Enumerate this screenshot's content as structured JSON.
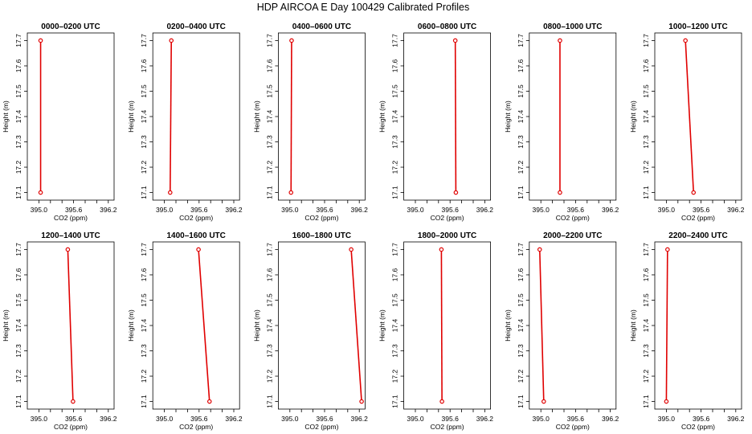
{
  "figure": {
    "title": "HDP AIRCOA E  Day 100429  Calibrated Profiles"
  },
  "chart_data": [
    {
      "type": "line",
      "title": "0000–0200 UTC",
      "xlabel": "CO2 (ppm)",
      "ylabel": "Height (m)",
      "xlim": [
        394.8,
        396.3
      ],
      "ylim": [
        17.07,
        17.73
      ],
      "x_ticks": [
        "395.0",
        "395.6",
        "396.2"
      ],
      "y_ticks": [
        "17.1",
        "17.2",
        "17.3",
        "17.4",
        "17.5",
        "17.6",
        "17.7"
      ],
      "series": [
        {
          "x": [
            395.03,
            395.03
          ],
          "y": [
            17.1,
            17.7
          ]
        }
      ]
    },
    {
      "type": "line",
      "title": "0200–0400 UTC",
      "xlabel": "CO2 (ppm)",
      "ylabel": "Height (m)",
      "xlim": [
        394.8,
        396.3
      ],
      "ylim": [
        17.07,
        17.73
      ],
      "x_ticks": [
        "395.0",
        "395.6",
        "396.2"
      ],
      "y_ticks": [
        "17.1",
        "17.2",
        "17.3",
        "17.4",
        "17.5",
        "17.6",
        "17.7"
      ],
      "series": [
        {
          "x": [
            395.1,
            395.12
          ],
          "y": [
            17.1,
            17.7
          ]
        }
      ]
    },
    {
      "type": "line",
      "title": "0400–0600 UTC",
      "xlabel": "CO2 (ppm)",
      "ylabel": "Height (m)",
      "xlim": [
        394.8,
        396.3
      ],
      "ylim": [
        17.07,
        17.73
      ],
      "x_ticks": [
        "395.0",
        "395.6",
        "396.2"
      ],
      "y_ticks": [
        "17.1",
        "17.2",
        "17.3",
        "17.4",
        "17.5",
        "17.6",
        "17.7"
      ],
      "series": [
        {
          "x": [
            395.02,
            395.03
          ],
          "y": [
            17.1,
            17.7
          ]
        }
      ]
    },
    {
      "type": "line",
      "title": "0600–0800 UTC",
      "xlabel": "CO2 (ppm)",
      "ylabel": "Height (m)",
      "xlim": [
        394.8,
        396.3
      ],
      "ylim": [
        17.07,
        17.73
      ],
      "x_ticks": [
        "395.0",
        "395.6",
        "396.2"
      ],
      "y_ticks": [
        "17.1",
        "17.2",
        "17.3",
        "17.4",
        "17.5",
        "17.6",
        "17.7"
      ],
      "series": [
        {
          "x": [
            395.7,
            395.69
          ],
          "y": [
            17.1,
            17.7
          ]
        }
      ]
    },
    {
      "type": "line",
      "title": "0800–1000 UTC",
      "xlabel": "CO2 (ppm)",
      "ylabel": "Height (m)",
      "xlim": [
        394.8,
        396.3
      ],
      "ylim": [
        17.07,
        17.73
      ],
      "x_ticks": [
        "395.0",
        "395.6",
        "396.2"
      ],
      "y_ticks": [
        "17.1",
        "17.2",
        "17.3",
        "17.4",
        "17.5",
        "17.6",
        "17.7"
      ],
      "series": [
        {
          "x": [
            395.33,
            395.33
          ],
          "y": [
            17.1,
            17.7
          ]
        }
      ]
    },
    {
      "type": "line",
      "title": "1000–1200 UTC",
      "xlabel": "CO2 (ppm)",
      "ylabel": "Height (m)",
      "xlim": [
        394.8,
        396.3
      ],
      "ylim": [
        17.07,
        17.73
      ],
      "x_ticks": [
        "395.0",
        "395.6",
        "396.2"
      ],
      "y_ticks": [
        "17.1",
        "17.2",
        "17.3",
        "17.4",
        "17.5",
        "17.6",
        "17.7"
      ],
      "series": [
        {
          "x": [
            395.47,
            395.33
          ],
          "y": [
            17.1,
            17.7
          ]
        }
      ]
    },
    {
      "type": "line",
      "title": "1200–1400 UTC",
      "xlabel": "CO2 (ppm)",
      "ylabel": "Height (m)",
      "xlim": [
        394.8,
        396.3
      ],
      "ylim": [
        17.07,
        17.73
      ],
      "x_ticks": [
        "395.0",
        "395.6",
        "396.2"
      ],
      "y_ticks": [
        "17.1",
        "17.2",
        "17.3",
        "17.4",
        "17.5",
        "17.6",
        "17.7"
      ],
      "series": [
        {
          "x": [
            395.59,
            395.5
          ],
          "y": [
            17.1,
            17.7
          ]
        }
      ]
    },
    {
      "type": "line",
      "title": "1400–1600 UTC",
      "xlabel": "CO2 (ppm)",
      "ylabel": "Height (m)",
      "xlim": [
        394.8,
        396.3
      ],
      "ylim": [
        17.07,
        17.73
      ],
      "x_ticks": [
        "395.0",
        "395.6",
        "396.2"
      ],
      "y_ticks": [
        "17.1",
        "17.2",
        "17.3",
        "17.4",
        "17.5",
        "17.6",
        "17.7"
      ],
      "series": [
        {
          "x": [
            395.78,
            395.59
          ],
          "y": [
            17.1,
            17.7
          ]
        }
      ]
    },
    {
      "type": "line",
      "title": "1600–1800 UTC",
      "xlabel": "CO2 (ppm)",
      "ylabel": "Height (m)",
      "xlim": [
        394.8,
        396.3
      ],
      "ylim": [
        17.07,
        17.73
      ],
      "x_ticks": [
        "395.0",
        "395.6",
        "396.2"
      ],
      "y_ticks": [
        "17.1",
        "17.2",
        "17.3",
        "17.4",
        "17.5",
        "17.6",
        "17.7"
      ],
      "series": [
        {
          "x": [
            396.24,
            396.06
          ],
          "y": [
            17.1,
            17.7
          ]
        }
      ]
    },
    {
      "type": "line",
      "title": "1800–2000 UTC",
      "xlabel": "CO2 (ppm)",
      "ylabel": "Height (m)",
      "xlim": [
        394.8,
        396.3
      ],
      "ylim": [
        17.07,
        17.73
      ],
      "x_ticks": [
        "395.0",
        "395.6",
        "396.2"
      ],
      "y_ticks": [
        "17.1",
        "17.2",
        "17.3",
        "17.4",
        "17.5",
        "17.6",
        "17.7"
      ],
      "series": [
        {
          "x": [
            395.46,
            395.45
          ],
          "y": [
            17.1,
            17.7
          ]
        }
      ]
    },
    {
      "type": "line",
      "title": "2000–2200 UTC",
      "xlabel": "CO2 (ppm)",
      "ylabel": "Height (m)",
      "xlim": [
        394.8,
        396.3
      ],
      "ylim": [
        17.07,
        17.73
      ],
      "x_ticks": [
        "395.0",
        "395.6",
        "396.2"
      ],
      "y_ticks": [
        "17.1",
        "17.2",
        "17.3",
        "17.4",
        "17.5",
        "17.6",
        "17.7"
      ],
      "series": [
        {
          "x": [
            395.05,
            394.98
          ],
          "y": [
            17.1,
            17.7
          ]
        }
      ]
    },
    {
      "type": "line",
      "title": "2200–2400 UTC",
      "xlabel": "CO2 (ppm)",
      "ylabel": "Height (m)",
      "xlim": [
        394.8,
        396.3
      ],
      "ylim": [
        17.07,
        17.73
      ],
      "x_ticks": [
        "395.0",
        "395.6",
        "396.2"
      ],
      "y_ticks": [
        "17.1",
        "17.2",
        "17.3",
        "17.4",
        "17.5",
        "17.6",
        "17.7"
      ],
      "series": [
        {
          "x": [
            395.0,
            395.02
          ],
          "y": [
            17.1,
            17.7
          ]
        }
      ]
    }
  ],
  "colors": {
    "profile": "#e00000",
    "axes": "#000000",
    "background": "#ffffff"
  }
}
